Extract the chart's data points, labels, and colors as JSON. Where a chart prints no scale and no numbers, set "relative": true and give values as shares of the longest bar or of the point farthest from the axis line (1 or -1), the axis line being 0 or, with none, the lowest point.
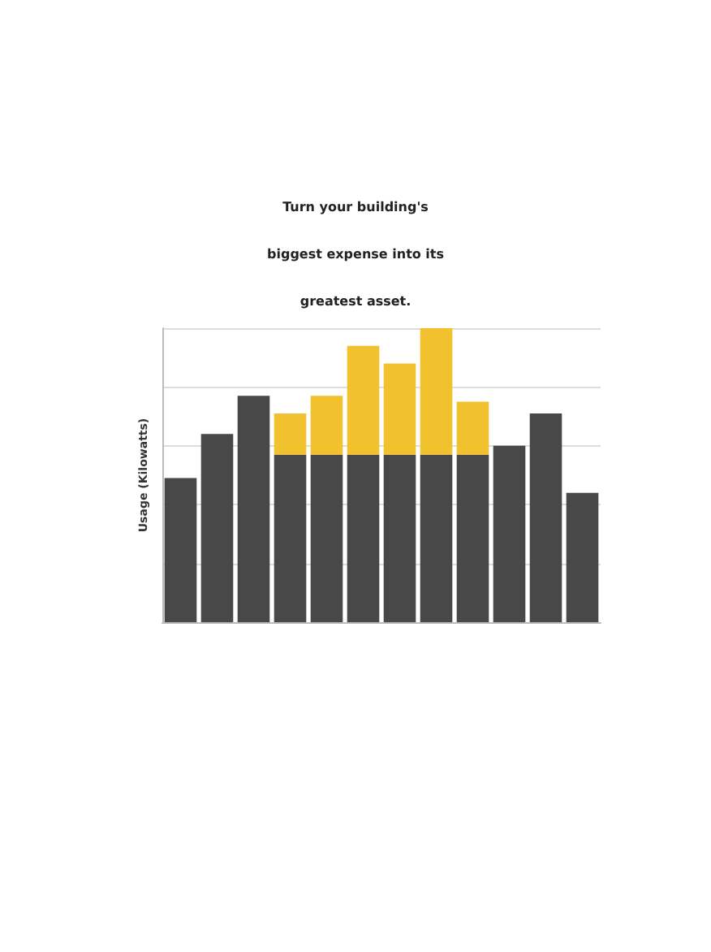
{
  "chart_data": {
    "type": "bar",
    "title": "Turn your building's\nbiggest expense into its\ngreatest asset.",
    "ylabel": "Usage (Kilowatts)",
    "relative": true,
    "stacked": true,
    "grid": "y",
    "categories": [
      null,
      null,
      null,
      null,
      null,
      null,
      null,
      null,
      null,
      null,
      null,
      null
    ],
    "series": [
      {
        "color": "#484848",
        "values": [
          0.49,
          0.64,
          0.77,
          0.57,
          0.57,
          0.57,
          0.57,
          0.57,
          0.57,
          0.6,
          0.71,
          0.44
        ]
      },
      {
        "color": "#f2c12e",
        "values": [
          null,
          null,
          null,
          0.14,
          0.2,
          0.37,
          0.31,
          0.43,
          0.18,
          null,
          null,
          null
        ]
      }
    ]
  }
}
